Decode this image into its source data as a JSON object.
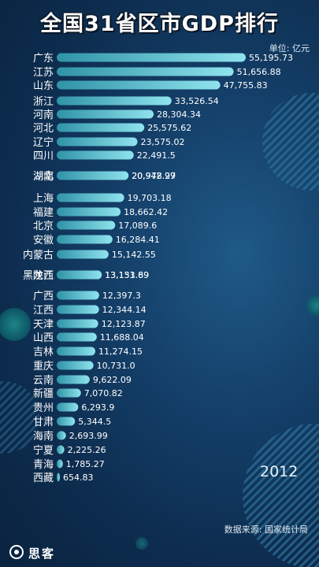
{
  "title": "全国31省区市GDP排行",
  "unit": "单位: 亿元",
  "year": "2012",
  "source": "数据来源: 国家统计局",
  "logo_text": "思客",
  "colors": {
    "bar_start": "#2f93a6",
    "bar_end": "#8fe3ee",
    "label": "#ffffff",
    "accent_circle": "#3fa8a6"
  },
  "chart_data": {
    "type": "bar",
    "orientation": "horizontal",
    "title": "全国31省区市GDP排行",
    "unit": "单位: 亿元",
    "categories": [
      "广东",
      "江苏",
      "山东",
      "浙江",
      "河南",
      "河北",
      "辽宁",
      "四川",
      "湖北",
      "湖南",
      "上海",
      "福建",
      "北京",
      "安徽",
      "内蒙古",
      "黑龙江",
      "陕西",
      "广西",
      "江西",
      "天津",
      "山西",
      "吉林",
      "重庆",
      "云南",
      "新疆",
      "贵州",
      "甘肃",
      "海南",
      "宁夏",
      "青海",
      "西藏"
    ],
    "values": [
      55195.73,
      51656.88,
      47755.83,
      33526.54,
      28304.34,
      25575.62,
      23575.02,
      22491.5,
      20978.27,
      20942.99,
      19703.18,
      18662.42,
      17089.6,
      16284.41,
      15142.55,
      13151.69,
      13133.89,
      12397.3,
      12344.14,
      12123.87,
      11688.04,
      11274.15,
      10731.0,
      9622.09,
      7070.82,
      6293.9,
      5344.5,
      2693.99,
      2225.26,
      1785.27,
      654.83
    ],
    "value_labels": [
      "55,195.73",
      "51,656.88",
      "47,755.83",
      "33,526.54",
      "28,304.34",
      "25,575.62",
      "23,575.02",
      "22,491.5",
      "20,978.27",
      "20,942.99",
      "19,703.18",
      "18,662.42",
      "17,089.6",
      "16,284.41",
      "15,142.55",
      "13,151.69",
      "13,133.89",
      "12,397.3",
      "12,344.14",
      "12,123.87",
      "11,688.04",
      "11,274.15",
      "10,731.0",
      "9,622.09",
      "7,070.82",
      "6,293.9",
      "5,344.5",
      "2,693.99",
      "2,225.26",
      "1,785.27",
      "654.83"
    ],
    "xlim": [
      0,
      55195.73
    ]
  }
}
